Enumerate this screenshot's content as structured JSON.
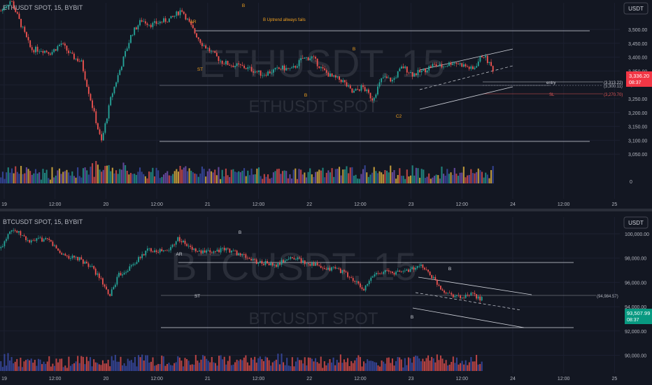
{
  "colors": {
    "background": "#131722",
    "up": "#26a69a",
    "down": "#ef5350",
    "line": "#d1d4dc",
    "annotation": "#f0a020",
    "axis_text": "#b2b5be",
    "watermark": "#2a2e39",
    "eth_price_tag": "#f23645",
    "btc_price_tag": "#089981",
    "sl": "#e05555"
  },
  "chart_data": [
    {
      "type": "candlestick",
      "title": "ETHUSDT SPOT, 15, BYBIT",
      "watermark": "ETHUSDT, 15",
      "watermark_sub": "ETHUSDT SPOT",
      "currency": "USDT",
      "x_ticks": [
        "19",
        "12:00",
        "20",
        "12:00",
        "21",
        "12:00",
        "22",
        "12:00",
        "23",
        "12:00",
        "24",
        "12:00",
        "25"
      ],
      "y_ticks": [
        "3,500.00",
        "3,450.00",
        "3,400.00",
        "3,350.00",
        "3,300.00",
        "3,250.00",
        "3,200.00",
        "3,150.00",
        "3,100.00",
        "3,050.00"
      ],
      "ylim": [
        3040,
        3560
      ],
      "volume_label": "0",
      "close": [
        3525,
        3560,
        3480,
        3400,
        3400,
        3390,
        3420,
        3380,
        3360,
        3230,
        3100,
        3250,
        3350,
        3450,
        3495,
        3480,
        3490,
        3500,
        3530,
        3470,
        3420,
        3390,
        3360,
        3350,
        3345,
        3335,
        3320,
        3330,
        3340,
        3335,
        3370,
        3375,
        3335,
        3310,
        3300,
        3260,
        3280,
        3240,
        3310,
        3300,
        3345,
        3320,
        3330,
        3350,
        3345,
        3360,
        3350,
        3335,
        3385,
        3336.2
      ],
      "current_price": {
        "label": "3,336.20",
        "timer": "08:37"
      },
      "levels": [
        {
          "label": "entry",
          "value": "(3,313.22)"
        },
        {
          "label": "",
          "value": "(3,300.11)"
        },
        {
          "label": "SL",
          "value": "(3,270.70)"
        }
      ],
      "annotations": [
        "AR",
        "ST",
        "B",
        "B",
        "B",
        "C2",
        "B Uptrend allways fails"
      ]
    },
    {
      "type": "candlestick",
      "title": "BTCUSDT SPOT, 15, BYBIT",
      "watermark": "BTCUSDT, 15",
      "watermark_sub": "BTCUSDT SPOT",
      "currency": "USDT",
      "x_ticks": [
        "19",
        "12:00",
        "20",
        "12:00",
        "21",
        "12:00",
        "22",
        "12:00",
        "23",
        "12:00",
        "24",
        "12:00",
        "25"
      ],
      "y_ticks": [
        "100,000.00",
        "98,000.00",
        "96,000.00",
        "94,000.00",
        "92,000.00",
        "90,000.00"
      ],
      "ylim": [
        89000,
        101000
      ],
      "close": [
        98000,
        99800,
        99200,
        98500,
        98800,
        98600,
        97600,
        97200,
        97000,
        96500,
        95500,
        93700,
        95600,
        96200,
        97000,
        97900,
        97800,
        97700,
        98900,
        98200,
        97700,
        97600,
        97800,
        97900,
        97600,
        97200,
        96800,
        96700,
        96400,
        97000,
        97200,
        96700,
        96600,
        96000,
        96300,
        95800,
        95100,
        94300,
        95700,
        96000,
        95800,
        96000,
        96200,
        96400,
        95400,
        94300,
        93900,
        93600,
        93900,
        93507.99
      ],
      "current_price": {
        "label": "93,507.99",
        "timer": "08:37"
      },
      "levels": [
        {
          "label": "",
          "value": "(94,984.57)"
        }
      ],
      "annotations": [
        "AR",
        "ST",
        "B",
        "B",
        "B"
      ]
    }
  ]
}
